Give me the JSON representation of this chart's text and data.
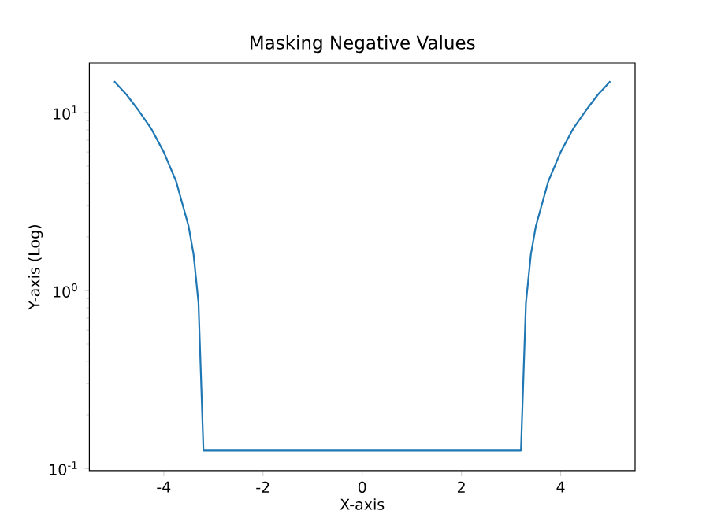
{
  "chart_data": {
    "type": "line",
    "title": "Masking Negative Values",
    "xlabel": "X-axis",
    "ylabel": "Y-axis (Log)",
    "log": "y",
    "x": [
      -5,
      -4.75,
      -4.5,
      -4.25,
      -4,
      -3.75,
      -3.5,
      -3.4,
      -3.3,
      -3.2,
      3.2,
      3.3,
      3.4,
      3.5,
      3.75,
      4,
      4.25,
      4.5,
      4.75,
      5
    ],
    "series": [
      {
        "color": "#1f77b4",
        "values": [
          15,
          12.6,
          10.2,
          8.1,
          6,
          4.1,
          2.3,
          1.6,
          0.85,
          0.126,
          0.126,
          0.85,
          1.6,
          2.3,
          4.1,
          6,
          8.1,
          10.2,
          12.6,
          15
        ]
      }
    ],
    "xlim": [
      -5.5,
      5.5
    ],
    "ylim": [
      0.097,
      19
    ],
    "xticks": [
      -4,
      -2,
      0,
      2,
      4
    ],
    "yticks": [
      {
        "value": 0.1,
        "label": "10$^{-1}$"
      },
      {
        "value": 1,
        "label": "10$^{0}$"
      },
      {
        "value": 10,
        "label": "10$^{1}$"
      }
    ],
    "marker": "none"
  }
}
